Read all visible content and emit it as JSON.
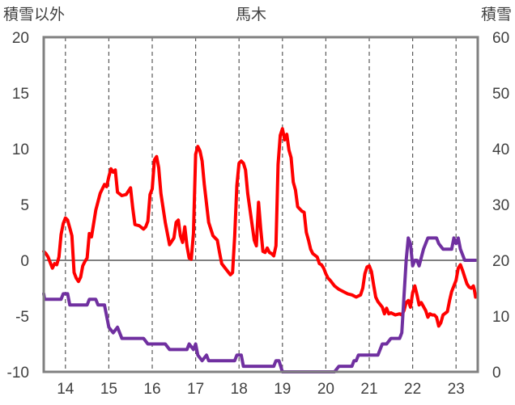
{
  "chart_data": {
    "type": "line",
    "title": "馬木",
    "left_axis": {
      "label": "積雪以外",
      "ylim": [
        -10,
        20
      ],
      "ticks": [
        -10,
        -5,
        0,
        5,
        10,
        15,
        20
      ]
    },
    "right_axis": {
      "label": "積雪",
      "ylim": [
        0,
        60
      ],
      "ticks": [
        0,
        10,
        20,
        30,
        40,
        50,
        60
      ]
    },
    "x_axis": {
      "xlim": [
        13.5,
        23.5
      ],
      "ticks": [
        14,
        15,
        16,
        17,
        18,
        19,
        20,
        21,
        22,
        23
      ]
    },
    "grid": {
      "vertical_dashed": true,
      "zero_line": true
    },
    "series": [
      {
        "color": "#ff0000",
        "axis": "left",
        "points": [
          [
            13.5,
            0.8
          ],
          [
            13.55,
            0.6
          ],
          [
            13.6,
            0.3
          ],
          [
            13.65,
            -0.2
          ],
          [
            13.7,
            -0.7
          ],
          [
            13.75,
            -0.3
          ],
          [
            13.8,
            -0.4
          ],
          [
            13.85,
            0.3
          ],
          [
            13.9,
            2.3
          ],
          [
            13.95,
            3.3
          ],
          [
            14.0,
            3.8
          ],
          [
            14.05,
            3.6
          ],
          [
            14.1,
            2.9
          ],
          [
            14.15,
            2.2
          ],
          [
            14.2,
            -1.1
          ],
          [
            14.25,
            -1.6
          ],
          [
            14.3,
            -1.9
          ],
          [
            14.35,
            -1.5
          ],
          [
            14.4,
            -0.5
          ],
          [
            14.45,
            -0.1
          ],
          [
            14.5,
            0.2
          ],
          [
            14.55,
            2.4
          ],
          [
            14.6,
            2.1
          ],
          [
            14.7,
            4.5
          ],
          [
            14.8,
            6.0
          ],
          [
            14.9,
            6.8
          ],
          [
            14.95,
            6.6
          ],
          [
            15.0,
            7.5
          ],
          [
            15.05,
            8.2
          ],
          [
            15.1,
            7.9
          ],
          [
            15.15,
            8.1
          ],
          [
            15.2,
            6.1
          ],
          [
            15.3,
            5.8
          ],
          [
            15.4,
            5.9
          ],
          [
            15.5,
            6.5
          ],
          [
            15.55,
            4.7
          ],
          [
            15.6,
            3.2
          ],
          [
            15.7,
            3.1
          ],
          [
            15.8,
            2.8
          ],
          [
            15.85,
            3.0
          ],
          [
            15.9,
            3.5
          ],
          [
            15.95,
            5.9
          ],
          [
            16.0,
            6.4
          ],
          [
            16.05,
            9.0
          ],
          [
            16.1,
            9.3
          ],
          [
            16.15,
            8.3
          ],
          [
            16.2,
            6.0
          ],
          [
            16.3,
            3.4
          ],
          [
            16.4,
            1.4
          ],
          [
            16.5,
            2.0
          ],
          [
            16.55,
            3.4
          ],
          [
            16.6,
            3.6
          ],
          [
            16.65,
            2.2
          ],
          [
            16.7,
            1.6
          ],
          [
            16.75,
            3.0
          ],
          [
            16.8,
            1.3
          ],
          [
            16.85,
            0.2
          ],
          [
            16.9,
            0.1
          ],
          [
            16.95,
            2.4
          ],
          [
            17.0,
            9.5
          ],
          [
            17.05,
            10.2
          ],
          [
            17.1,
            9.8
          ],
          [
            17.15,
            8.9
          ],
          [
            17.2,
            6.8
          ],
          [
            17.3,
            3.4
          ],
          [
            17.4,
            2.2
          ],
          [
            17.5,
            1.8
          ],
          [
            17.55,
            0.7
          ],
          [
            17.6,
            -0.3
          ],
          [
            17.7,
            -0.8
          ],
          [
            17.8,
            -1.3
          ],
          [
            17.85,
            -1.1
          ],
          [
            17.9,
            2.1
          ],
          [
            17.95,
            6.7
          ],
          [
            18.0,
            8.7
          ],
          [
            18.05,
            8.9
          ],
          [
            18.1,
            8.7
          ],
          [
            18.15,
            8.1
          ],
          [
            18.2,
            6.0
          ],
          [
            18.3,
            3.2
          ],
          [
            18.35,
            1.8
          ],
          [
            18.4,
            1.3
          ],
          [
            18.45,
            5.2
          ],
          [
            18.5,
            2.8
          ],
          [
            18.55,
            0.8
          ],
          [
            18.6,
            0.7
          ],
          [
            18.65,
            1.1
          ],
          [
            18.7,
            0.7
          ],
          [
            18.75,
            0.6
          ],
          [
            18.8,
            0.4
          ],
          [
            18.85,
            1.3
          ],
          [
            18.9,
            8.6
          ],
          [
            18.95,
            11.2
          ],
          [
            19.0,
            11.8
          ],
          [
            19.05,
            10.8
          ],
          [
            19.1,
            11.3
          ],
          [
            19.15,
            9.9
          ],
          [
            19.2,
            9.2
          ],
          [
            19.25,
            7.0
          ],
          [
            19.3,
            6.3
          ],
          [
            19.35,
            4.8
          ],
          [
            19.4,
            4.6
          ],
          [
            19.45,
            4.4
          ],
          [
            19.5,
            4.3
          ],
          [
            19.55,
            2.5
          ],
          [
            19.6,
            1.8
          ],
          [
            19.65,
            1.0
          ],
          [
            19.7,
            0.6
          ],
          [
            19.8,
            0.3
          ],
          [
            19.85,
            -0.3
          ],
          [
            19.9,
            -0.4
          ],
          [
            19.95,
            -0.7
          ],
          [
            20.0,
            -1.2
          ],
          [
            20.05,
            -1.6
          ],
          [
            20.1,
            -1.8
          ],
          [
            20.2,
            -2.3
          ],
          [
            20.3,
            -2.6
          ],
          [
            20.4,
            -2.8
          ],
          [
            20.5,
            -3.0
          ],
          [
            20.6,
            -3.1
          ],
          [
            20.7,
            -3.3
          ],
          [
            20.8,
            -3.1
          ],
          [
            20.85,
            -2.5
          ],
          [
            20.9,
            -1.2
          ],
          [
            20.95,
            -0.6
          ],
          [
            21.0,
            -0.5
          ],
          [
            21.05,
            -1.0
          ],
          [
            21.1,
            -2.2
          ],
          [
            21.15,
            -3.3
          ],
          [
            21.2,
            -3.7
          ],
          [
            21.3,
            -4.2
          ],
          [
            21.35,
            -4.8
          ],
          [
            21.4,
            -4.3
          ],
          [
            21.45,
            -4.8
          ],
          [
            21.5,
            -4.7
          ],
          [
            21.6,
            -4.9
          ],
          [
            21.7,
            -4.8
          ],
          [
            21.75,
            -4.9
          ],
          [
            21.8,
            -4.5
          ],
          [
            21.85,
            -3.8
          ],
          [
            21.9,
            -3.6
          ],
          [
            21.95,
            -4.2
          ],
          [
            22.0,
            -2.9
          ],
          [
            22.05,
            -2.3
          ],
          [
            22.1,
            -3.1
          ],
          [
            22.15,
            -4.0
          ],
          [
            22.2,
            -3.8
          ],
          [
            22.3,
            -4.5
          ],
          [
            22.35,
            -5.1
          ],
          [
            22.4,
            -4.8
          ],
          [
            22.45,
            -4.9
          ],
          [
            22.5,
            -4.9
          ],
          [
            22.55,
            -5.1
          ],
          [
            22.6,
            -5.9
          ],
          [
            22.65,
            -5.6
          ],
          [
            22.7,
            -4.9
          ],
          [
            22.8,
            -4.6
          ],
          [
            22.85,
            -3.6
          ],
          [
            22.9,
            -2.8
          ],
          [
            23.0,
            -1.8
          ],
          [
            23.05,
            -0.7
          ],
          [
            23.1,
            -0.4
          ],
          [
            23.15,
            -0.9
          ],
          [
            23.2,
            -1.5
          ],
          [
            23.25,
            -2.1
          ],
          [
            23.3,
            -2.4
          ],
          [
            23.35,
            -2.5
          ],
          [
            23.4,
            -2.3
          ],
          [
            23.42,
            -2.6
          ],
          [
            23.45,
            -3.3
          ]
        ]
      },
      {
        "color": "#7030a0",
        "axis": "right",
        "points": [
          [
            13.5,
            14
          ],
          [
            13.52,
            13
          ],
          [
            13.9,
            13
          ],
          [
            13.95,
            14
          ],
          [
            14.05,
            14
          ],
          [
            14.1,
            12
          ],
          [
            14.5,
            12
          ],
          [
            14.55,
            13
          ],
          [
            14.7,
            13
          ],
          [
            14.75,
            12
          ],
          [
            14.9,
            12
          ],
          [
            15.0,
            8
          ],
          [
            15.1,
            7
          ],
          [
            15.2,
            8
          ],
          [
            15.3,
            6
          ],
          [
            15.8,
            6
          ],
          [
            15.9,
            5
          ],
          [
            16.3,
            5
          ],
          [
            16.4,
            4
          ],
          [
            16.8,
            4
          ],
          [
            16.85,
            5
          ],
          [
            16.95,
            4
          ],
          [
            17.0,
            5
          ],
          [
            17.05,
            3
          ],
          [
            17.15,
            2
          ],
          [
            17.25,
            3
          ],
          [
            17.3,
            2
          ],
          [
            17.9,
            2
          ],
          [
            17.95,
            3
          ],
          [
            18.05,
            3
          ],
          [
            18.1,
            1
          ],
          [
            18.8,
            1
          ],
          [
            18.85,
            2
          ],
          [
            18.92,
            2
          ],
          [
            19.0,
            0
          ],
          [
            20.2,
            0
          ],
          [
            20.3,
            1
          ],
          [
            20.6,
            1
          ],
          [
            20.65,
            2
          ],
          [
            20.7,
            2
          ],
          [
            20.75,
            3
          ],
          [
            21.2,
            3
          ],
          [
            21.3,
            5
          ],
          [
            21.4,
            5
          ],
          [
            21.5,
            6
          ],
          [
            21.7,
            6
          ],
          [
            21.75,
            7
          ],
          [
            21.85,
            20
          ],
          [
            21.9,
            24
          ],
          [
            21.95,
            23
          ],
          [
            22.0,
            19
          ],
          [
            22.05,
            20
          ],
          [
            22.1,
            20
          ],
          [
            22.15,
            19
          ],
          [
            22.25,
            22
          ],
          [
            22.35,
            24
          ],
          [
            22.55,
            24
          ],
          [
            22.6,
            23
          ],
          [
            22.7,
            22
          ],
          [
            22.75,
            22
          ],
          [
            22.8,
            22
          ],
          [
            22.9,
            22
          ],
          [
            22.95,
            24
          ],
          [
            23.0,
            23
          ],
          [
            23.05,
            24
          ],
          [
            23.1,
            22
          ],
          [
            23.2,
            20
          ],
          [
            23.3,
            20
          ],
          [
            23.45,
            20
          ]
        ]
      }
    ]
  }
}
